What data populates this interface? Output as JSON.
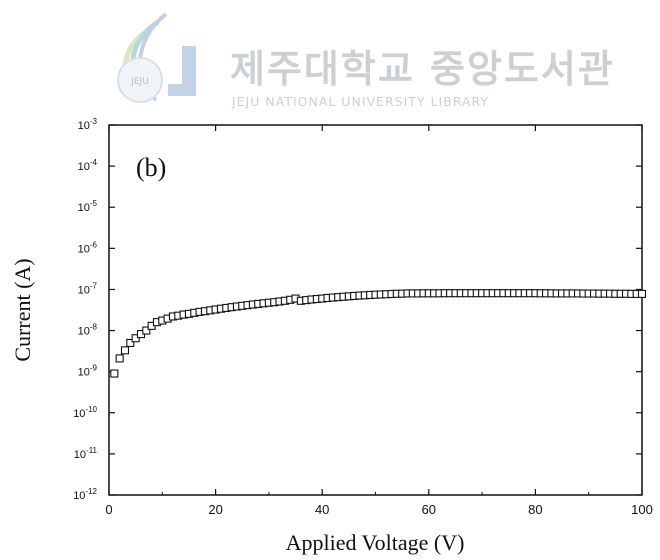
{
  "watermark": {
    "title": "제주대학교 중앙도서관",
    "subtitle": "JEJU NATIONAL UNIVERSITY LIBRARY",
    "logo_text": "JEJU"
  },
  "chart_data": {
    "type": "scatter",
    "panel_label": "(b)",
    "xlabel": "Applied Voltage (V)",
    "ylabel": "Current (A)",
    "xlim": [
      0,
      100
    ],
    "ylim": [
      1e-12,
      0.001
    ],
    "yscale": "log",
    "x_ticks": [
      "0",
      "20",
      "40",
      "60",
      "80",
      "100"
    ],
    "y_tick_base": "10",
    "y_tick_exponents": [
      "-3",
      "-4",
      "-5",
      "-6",
      "-7",
      "-8",
      "-9",
      "-10",
      "-11",
      "-12"
    ],
    "marker": "open-square",
    "grid": false,
    "series": [
      {
        "x": [
          1,
          2,
          3,
          4,
          5,
          6,
          7,
          8,
          9,
          10,
          11,
          12,
          13,
          14,
          15,
          16,
          17,
          18,
          19,
          20,
          21,
          22,
          23,
          24,
          25,
          26,
          27,
          28,
          29,
          30,
          31,
          32,
          33,
          34,
          35,
          36,
          37,
          38,
          39,
          40,
          41,
          42,
          43,
          44,
          45,
          46,
          47,
          48,
          49,
          50,
          51,
          52,
          53,
          54,
          55,
          56,
          57,
          58,
          59,
          60,
          61,
          62,
          63,
          64,
          65,
          66,
          67,
          68,
          69,
          70,
          71,
          72,
          73,
          74,
          75,
          76,
          77,
          78,
          79,
          80,
          81,
          82,
          83,
          84,
          85,
          86,
          87,
          88,
          89,
          90,
          91,
          92,
          93,
          94,
          95,
          96,
          97,
          98,
          99,
          100
        ],
        "y": [
          9e-10,
          2.1e-09,
          3.3e-09,
          5e-09,
          6.5e-09,
          8.2e-09,
          1e-08,
          1.3e-08,
          1.6e-08,
          1.75e-08,
          1.95e-08,
          2.2e-08,
          2.3e-08,
          2.45e-08,
          2.55e-08,
          2.7e-08,
          2.85e-08,
          2.95e-08,
          3.1e-08,
          3.25e-08,
          3.4e-08,
          3.55e-08,
          3.7e-08,
          3.85e-08,
          4e-08,
          4.15e-08,
          4.3e-08,
          4.45e-08,
          4.6e-08,
          4.75e-08,
          4.9e-08,
          5.1e-08,
          5.3e-08,
          5.6e-08,
          6e-08,
          5.3e-08,
          5.5e-08,
          5.7e-08,
          5.85e-08,
          6e-08,
          6.2e-08,
          6.35e-08,
          6.5e-08,
          6.65e-08,
          6.8e-08,
          6.95e-08,
          7.1e-08,
          7.2e-08,
          7.35e-08,
          7.45e-08,
          7.55e-08,
          7.65e-08,
          7.75e-08,
          7.85e-08,
          7.9e-08,
          8e-08,
          8e-08,
          8e-08,
          8.05e-08,
          8.05e-08,
          8.05e-08,
          8.05e-08,
          8.1e-08,
          8.1e-08,
          8.1e-08,
          8.1e-08,
          8.1e-08,
          8.1e-08,
          8.1e-08,
          8.1e-08,
          8.1e-08,
          8.1e-08,
          8.1e-08,
          8.1e-08,
          8.1e-08,
          8.1e-08,
          8.1e-08,
          8.1e-08,
          8.1e-08,
          8.1e-08,
          8.05e-08,
          8.05e-08,
          8.05e-08,
          8e-08,
          8e-08,
          8e-08,
          8e-08,
          8e-08,
          7.95e-08,
          7.95e-08,
          7.95e-08,
          7.9e-08,
          7.9e-08,
          7.9e-08,
          7.85e-08,
          7.85e-08,
          7.85e-08,
          7.8e-08,
          7.8e-08,
          7.8e-08
        ]
      }
    ]
  }
}
